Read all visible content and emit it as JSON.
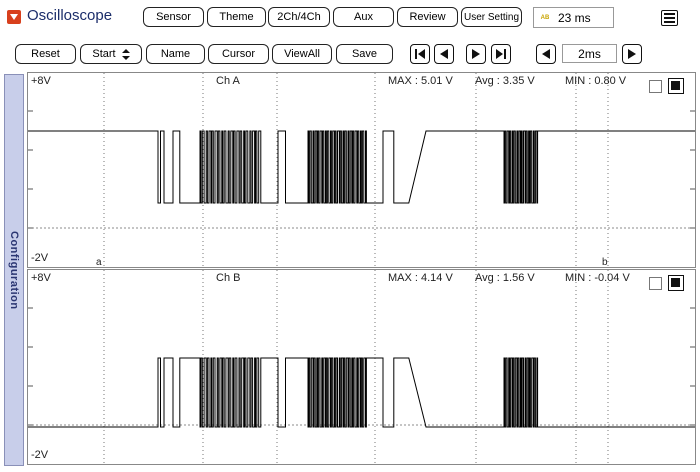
{
  "app": {
    "title": "Oscilloscope"
  },
  "top_buttons": [
    "Sensor",
    "Theme",
    "2Ch/4Ch",
    "Aux",
    "Review",
    "User Setting"
  ],
  "status": {
    "label": "AB",
    "value": "23 ms"
  },
  "controls": {
    "reset": "Reset",
    "start": "Start",
    "name": "Name",
    "cursor": "Cursor",
    "viewall": "ViewAll",
    "save": "Save",
    "timebase": "2ms"
  },
  "sidebar": {
    "label": "Configuration"
  },
  "channels": [
    {
      "name": "Ch A",
      "top_label": "+8V",
      "bottom_label": "-2V",
      "max": "MAX : 5.01 V",
      "avg": "Avg : 3.35 V",
      "min": "MIN : 0.80 V",
      "cursor_a": "a",
      "cursor_b": "b"
    },
    {
      "name": "Ch B",
      "top_label": "+8V",
      "bottom_label": "-2V",
      "max": "MAX : 4.14 V",
      "avg": "Avg : 1.56 V",
      "min": "MIN : -0.04 V"
    }
  ],
  "colors": {
    "title": "#1b2d6a",
    "logo": "#d8401d",
    "sidebar": "#c8ceea",
    "trace": "#000000"
  }
}
